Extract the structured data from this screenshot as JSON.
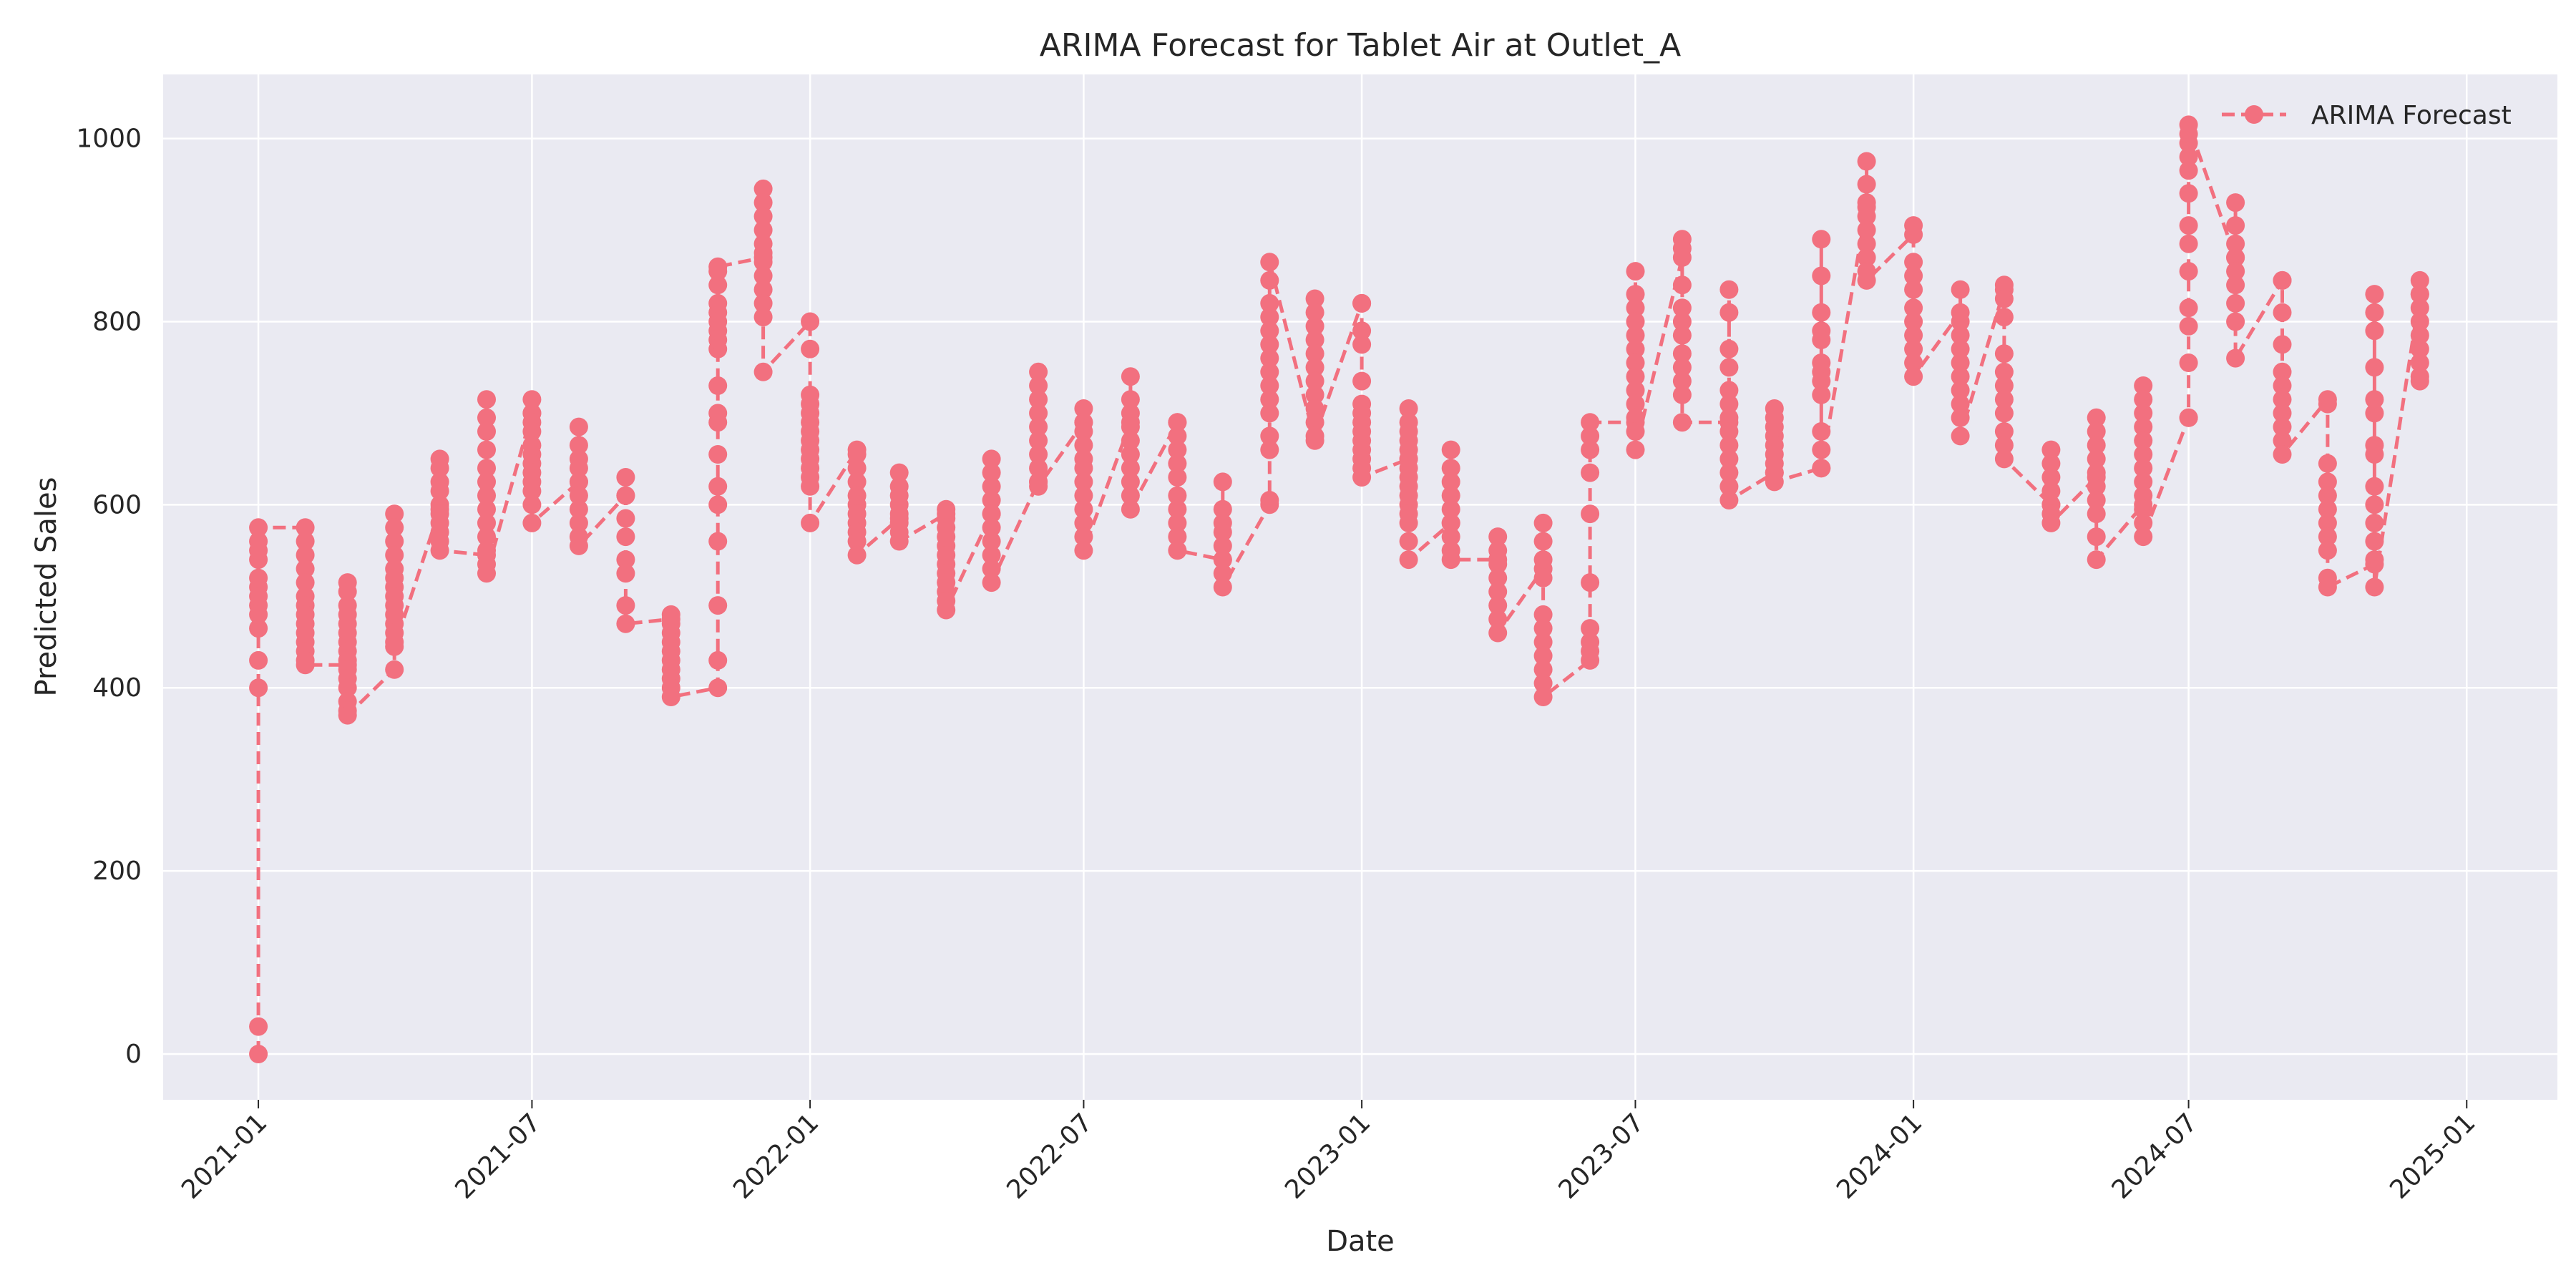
{
  "chart_data": {
    "type": "line",
    "title": "ARIMA Forecast for Tablet Air at Outlet_A",
    "xlabel": "Date",
    "ylabel": "Predicted Sales",
    "xlim": [
      "2020-10-30",
      "2025-03-02"
    ],
    "ylim": [
      -50,
      1070
    ],
    "x_ticks": [
      "2021-01",
      "2021-07",
      "2022-01",
      "2022-07",
      "2023-01",
      "2023-07",
      "2024-01",
      "2024-07",
      "2025-01"
    ],
    "y_ticks": [
      0,
      200,
      400,
      600,
      800,
      1000
    ],
    "grid": true,
    "legend": {
      "placement": "top-right",
      "entries": [
        "ARIMA Forecast"
      ]
    },
    "colors": {
      "series": "#f2707f",
      "plot_background": "#eaeaf2",
      "grid": "#ffffff"
    },
    "line_style": "dashed",
    "marker": "circle",
    "series": [
      {
        "name": "ARIMA Forecast",
        "groups": [
          {
            "date": "2021-01-01",
            "values": [
              0,
              30,
              400,
              430,
              465,
              480,
              490,
              500,
              510,
              520,
              540,
              550,
              560,
              575
            ]
          },
          {
            "date": "2021-02-01",
            "values": [
              575,
              560,
              545,
              530,
              515,
              500,
              490,
              480,
              470,
              460,
              450,
              440,
              430,
              425
            ]
          },
          {
            "date": "2021-03-01",
            "values": [
              425,
              515,
              505,
              490,
              480,
              470,
              460,
              450,
              440,
              430,
              420,
              410,
              400,
              385,
              375,
              370
            ]
          },
          {
            "date": "2021-04-01",
            "values": [
              420,
              590,
              575,
              560,
              545,
              530,
              520,
              510,
              500,
              490,
              480,
              470,
              460,
              450,
              445
            ]
          },
          {
            "date": "2021-05-01",
            "values": [
              595,
              650,
              640,
              625,
              615,
              600,
              590,
              580,
              570,
              560,
              550
            ]
          },
          {
            "date": "2021-06-01",
            "values": [
              545,
              715,
              695,
              680,
              660,
              640,
              625,
              610,
              595,
              580,
              565,
              550,
              535,
              525
            ]
          },
          {
            "date": "2021-07-01",
            "values": [
              700,
              715,
              700,
              690,
              680,
              665,
              655,
              645,
              635,
              625,
              615,
              600,
              580
            ]
          },
          {
            "date": "2021-08-01",
            "values": [
              625,
              685,
              665,
              650,
              640,
              625,
              610,
              595,
              580,
              565,
              555
            ]
          },
          {
            "date": "2021-09-01",
            "values": [
              610,
              630,
              610,
              585,
              565,
              540,
              525,
              490,
              470
            ]
          },
          {
            "date": "2021-10-01",
            "values": [
              475,
              480,
              470,
              460,
              450,
              440,
              430,
              420,
              410,
              400,
              390
            ]
          },
          {
            "date": "2021-11-01",
            "values": [
              400,
              430,
              490,
              560,
              600,
              620,
              655,
              690,
              700,
              730,
              770,
              780,
              790,
              800,
              810,
              820,
              840,
              855,
              860
            ]
          },
          {
            "date": "2021-12-01",
            "values": [
              870,
              945,
              930,
              915,
              900,
              885,
              875,
              865,
              850,
              835,
              820,
              805,
              745
            ]
          },
          {
            "date": "2022-01-01",
            "values": [
              800,
              770,
              720,
              710,
              700,
              690,
              680,
              670,
              660,
              650,
              640,
              630,
              620,
              580
            ]
          },
          {
            "date": "2022-02-01",
            "values": [
              660,
              655,
              640,
              625,
              610,
              600,
              590,
              580,
              570,
              560,
              545
            ]
          },
          {
            "date": "2022-03-01",
            "values": [
              585,
              635,
              620,
              610,
              600,
              590,
              580,
              570,
              560
            ]
          },
          {
            "date": "2022-04-01",
            "values": [
              590,
              595,
              585,
              575,
              565,
              555,
              545,
              535,
              525,
              515,
              505,
              495,
              485
            ]
          },
          {
            "date": "2022-05-01",
            "values": [
              590,
              650,
              635,
              620,
              605,
              590,
              575,
              560,
              545,
              530,
              515
            ]
          },
          {
            "date": "2022-06-01",
            "values": [
              625,
              745,
              730,
              715,
              700,
              685,
              670,
              655,
              640,
              625,
              620
            ]
          },
          {
            "date": "2022-07-01",
            "values": [
              690,
              705,
              690,
              680,
              665,
              650,
              640,
              625,
              610,
              595,
              580,
              565,
              550
            ]
          },
          {
            "date": "2022-08-01",
            "values": [
              690,
              740,
              715,
              700,
              685,
              670,
              655,
              640,
              625,
              610,
              595
            ]
          },
          {
            "date": "2022-09-01",
            "values": [
              690,
              690,
              675,
              660,
              645,
              630,
              610,
              595,
              580,
              565,
              550
            ]
          },
          {
            "date": "2022-10-01",
            "values": [
              540,
              625,
              595,
              580,
              570,
              555,
              540,
              525,
              510
            ]
          },
          {
            "date": "2022-11-01",
            "values": [
              600,
              605,
              660,
              675,
              700,
              715,
              730,
              745,
              760,
              775,
              790,
              805,
              820,
              845,
              865
            ]
          },
          {
            "date": "2022-12-01",
            "values": [
              670,
              825,
              810,
              795,
              780,
              765,
              750,
              735,
              720,
              705,
              690,
              675
            ]
          },
          {
            "date": "2023-01-01",
            "values": [
              820,
              820,
              790,
              775,
              735,
              710,
              700,
              690,
              680,
              670,
              660,
              650,
              640,
              630
            ]
          },
          {
            "date": "2023-02-01",
            "values": [
              650,
              705,
              690,
              680,
              670,
              660,
              650,
              640,
              630,
              620,
              610,
              600,
              590,
              580,
              560,
              540
            ]
          },
          {
            "date": "2023-03-01",
            "values": [
              580,
              660,
              640,
              625,
              610,
              595,
              580,
              565,
              550,
              540
            ]
          },
          {
            "date": "2023-04-01",
            "values": [
              540,
              565,
              550,
              535,
              520,
              505,
              490,
              475,
              460
            ]
          },
          {
            "date": "2023-05-01",
            "values": [
              530,
              580,
              560,
              540,
              520,
              480,
              465,
              450,
              435,
              420,
              405,
              390
            ]
          },
          {
            "date": "2023-06-01",
            "values": [
              430,
              440,
              450,
              465,
              515,
              590,
              635,
              660,
              675,
              690
            ]
          },
          {
            "date": "2023-07-01",
            "values": [
              690,
              855,
              830,
              815,
              800,
              785,
              770,
              755,
              740,
              725,
              710,
              695,
              680,
              660
            ]
          },
          {
            "date": "2023-08-01",
            "values": [
              870,
              890,
              880,
              840,
              815,
              800,
              785,
              765,
              750,
              735,
              720,
              690
            ]
          },
          {
            "date": "2023-09-01",
            "values": [
              690,
              835,
              810,
              770,
              750,
              725,
              710,
              695,
              680,
              665,
              650,
              635,
              620,
              605
            ]
          },
          {
            "date": "2023-10-01",
            "values": [
              635,
              705,
              695,
              685,
              675,
              665,
              655,
              645,
              635,
              625
            ]
          },
          {
            "date": "2023-11-01",
            "values": [
              640,
              890,
              850,
              810,
              790,
              780,
              755,
              745,
              735,
              720,
              680,
              660,
              640
            ]
          },
          {
            "date": "2023-12-01",
            "values": [
              925,
              975,
              950,
              930,
              915,
              900,
              885,
              870,
              855,
              845
            ]
          },
          {
            "date": "2024-01-01",
            "values": [
              895,
              905,
              865,
              850,
              835,
              815,
              800,
              785,
              770,
              755,
              740
            ]
          },
          {
            "date": "2024-02-01",
            "values": [
              810,
              835,
              800,
              785,
              770,
              755,
              740,
              725,
              710,
              695,
              675
            ]
          },
          {
            "date": "2024-03-01",
            "values": [
              835,
              840,
              825,
              805,
              765,
              745,
              730,
              715,
              700,
              680,
              665,
              650
            ]
          },
          {
            "date": "2024-04-01",
            "values": [
              600,
              660,
              645,
              630,
              615,
              600,
              590,
              580
            ]
          },
          {
            "date": "2024-05-01",
            "values": [
              630,
              695,
              680,
              665,
              650,
              635,
              620,
              605,
              590,
              565,
              540
            ]
          },
          {
            "date": "2024-06-01",
            "values": [
              600,
              730,
              715,
              700,
              685,
              670,
              655,
              640,
              625,
              610,
              595,
              580,
              565
            ]
          },
          {
            "date": "2024-07-01",
            "values": [
              695,
              695,
              755,
              795,
              815,
              855,
              885,
              905,
              940,
              965,
              980,
              995,
              1005,
              1015
            ]
          },
          {
            "date": "2024-08-01",
            "values": [
              870,
              930,
              905,
              885,
              870,
              855,
              840,
              820,
              800,
              760
            ]
          },
          {
            "date": "2024-09-01",
            "values": [
              845,
              845,
              810,
              775,
              745,
              730,
              715,
              700,
              685,
              670,
              655
            ]
          },
          {
            "date": "2024-10-01",
            "values": [
              715,
              710,
              645,
              625,
              610,
              595,
              580,
              565,
              550,
              520,
              510
            ]
          },
          {
            "date": "2024-11-01",
            "values": [
              535,
              830,
              810,
              790,
              750,
              715,
              700,
              665,
              655,
              620,
              600,
              580,
              560,
              540,
              510
            ]
          },
          {
            "date": "2024-12-01",
            "values": [
              830,
              845,
              830,
              815,
              800,
              785,
              770,
              755,
              740,
              735
            ]
          }
        ]
      }
    ]
  }
}
